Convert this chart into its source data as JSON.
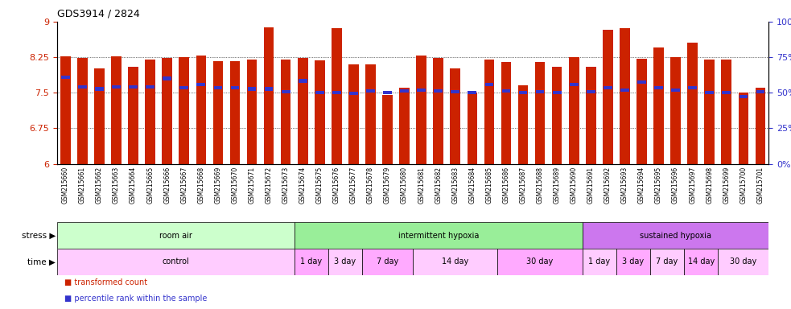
{
  "title": "GDS3914 / 2824",
  "samples": [
    "GSM215660",
    "GSM215661",
    "GSM215662",
    "GSM215663",
    "GSM215664",
    "GSM215665",
    "GSM215666",
    "GSM215667",
    "GSM215668",
    "GSM215669",
    "GSM215670",
    "GSM215671",
    "GSM215672",
    "GSM215673",
    "GSM215674",
    "GSM215675",
    "GSM215676",
    "GSM215677",
    "GSM215678",
    "GSM215679",
    "GSM215680",
    "GSM215681",
    "GSM215682",
    "GSM215683",
    "GSM215684",
    "GSM215685",
    "GSM215686",
    "GSM215687",
    "GSM215688",
    "GSM215689",
    "GSM215690",
    "GSM215691",
    "GSM215692",
    "GSM215693",
    "GSM215694",
    "GSM215695",
    "GSM215696",
    "GSM215697",
    "GSM215698",
    "GSM215699",
    "GSM215700",
    "GSM215701"
  ],
  "bar_heights": [
    8.26,
    8.24,
    8.02,
    8.26,
    8.04,
    8.2,
    8.24,
    8.25,
    8.28,
    8.17,
    8.17,
    8.2,
    8.88,
    8.2,
    8.24,
    8.18,
    8.86,
    8.1,
    8.1,
    7.45,
    7.6,
    8.28,
    8.24,
    8.02,
    7.5,
    8.2,
    8.15,
    7.65,
    8.15,
    8.05,
    8.25,
    8.05,
    8.82,
    8.87,
    8.22,
    8.45,
    8.25,
    8.55,
    8.2,
    8.2,
    7.5,
    7.6
  ],
  "percentile_values": [
    7.82,
    7.62,
    7.58,
    7.62,
    7.62,
    7.62,
    7.8,
    7.6,
    7.68,
    7.6,
    7.6,
    7.58,
    7.58,
    7.52,
    7.75,
    7.5,
    7.5,
    7.48,
    7.54,
    7.5,
    7.54,
    7.56,
    7.54,
    7.52,
    7.5,
    7.68,
    7.54,
    7.5,
    7.52,
    7.5,
    7.68,
    7.52,
    7.6,
    7.56,
    7.72,
    7.6,
    7.56,
    7.6,
    7.5,
    7.5,
    7.42,
    7.52
  ],
  "ylim": [
    6,
    9
  ],
  "yticks": [
    6,
    6.75,
    7.5,
    8.25,
    9
  ],
  "ytick_labels": [
    "6",
    "6.75",
    "7.5",
    "8.25",
    "9"
  ],
  "right_yticks": [
    0,
    25,
    50,
    75,
    100
  ],
  "right_ytick_labels": [
    "0%",
    "25%",
    "50%",
    "75%",
    "100%"
  ],
  "bar_color": "#cc2200",
  "percentile_color": "#3333cc",
  "background_color": "#ffffff",
  "stress_row": [
    {
      "label": "room air",
      "start": 0,
      "end": 13,
      "color": "#ccffcc"
    },
    {
      "label": "intermittent hypoxia",
      "start": 14,
      "end": 30,
      "color": "#99ee99"
    },
    {
      "label": "sustained hypoxia",
      "start": 31,
      "end": 41,
      "color": "#cc77ee"
    }
  ],
  "time_row": [
    {
      "label": "control",
      "start": 0,
      "end": 13,
      "color": "#ffccff"
    },
    {
      "label": "1 day",
      "start": 14,
      "end": 15,
      "color": "#ffaaff"
    },
    {
      "label": "3 day",
      "start": 16,
      "end": 17,
      "color": "#ffccff"
    },
    {
      "label": "7 day",
      "start": 18,
      "end": 20,
      "color": "#ffaaff"
    },
    {
      "label": "14 day",
      "start": 21,
      "end": 25,
      "color": "#ffccff"
    },
    {
      "label": "30 day",
      "start": 26,
      "end": 30,
      "color": "#ffaaff"
    },
    {
      "label": "1 day",
      "start": 31,
      "end": 32,
      "color": "#ffccff"
    },
    {
      "label": "3 day",
      "start": 33,
      "end": 34,
      "color": "#ffaaff"
    },
    {
      "label": "7 day",
      "start": 35,
      "end": 36,
      "color": "#ffccff"
    },
    {
      "label": "14 day",
      "start": 37,
      "end": 38,
      "color": "#ffaaff"
    },
    {
      "label": "30 day",
      "start": 39,
      "end": 41,
      "color": "#ffccff"
    }
  ],
  "stress_label": "stress",
  "time_label": "time",
  "legend": [
    {
      "label": "transformed count",
      "color": "#cc2200"
    },
    {
      "label": "percentile rank within the sample",
      "color": "#3333cc"
    }
  ]
}
